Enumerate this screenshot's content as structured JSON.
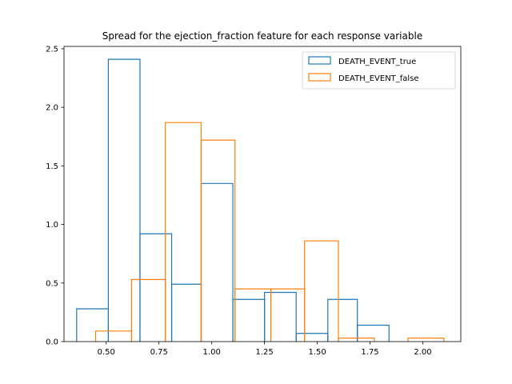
{
  "chart_data": {
    "type": "histogram",
    "title": "Spread for the ejection_fraction feature for each response variable",
    "xlabel": "",
    "ylabel": "",
    "xlim": [
      0.3,
      2.18
    ],
    "ylim": [
      0,
      2.52
    ],
    "xticks": [
      "0.50",
      "0.75",
      "1.00",
      "1.25",
      "1.50",
      "1.75",
      "2.00"
    ],
    "xtick_values": [
      0.5,
      0.75,
      1.0,
      1.25,
      1.5,
      1.75,
      2.0
    ],
    "yticks": [
      "0.0",
      "0.5",
      "1.0",
      "1.5",
      "2.0",
      "2.5"
    ],
    "ytick_values": [
      0.0,
      0.5,
      1.0,
      1.5,
      2.0,
      2.5
    ],
    "grid": false,
    "legend_position": "top-right",
    "series": [
      {
        "name": "DEATH_EVENT_true",
        "color": "#1f77b4",
        "bin_edges": [
          0.36,
          0.51,
          0.66,
          0.81,
          0.95,
          1.1,
          1.25,
          1.4,
          1.55,
          1.69,
          1.84
        ],
        "values": [
          0.28,
          2.41,
          0.92,
          0.49,
          1.35,
          0.36,
          0.42,
          0.07,
          0.36,
          0.14
        ]
      },
      {
        "name": "DEATH_EVENT_false",
        "color": "#ff7f0e",
        "bin_edges": [
          0.45,
          0.62,
          0.78,
          0.95,
          1.11,
          1.28,
          1.44,
          1.6,
          1.77,
          1.93,
          2.1
        ],
        "values": [
          0.09,
          0.53,
          1.87,
          1.72,
          0.45,
          0.45,
          0.86,
          0.03,
          0.0,
          0.03
        ]
      }
    ]
  }
}
